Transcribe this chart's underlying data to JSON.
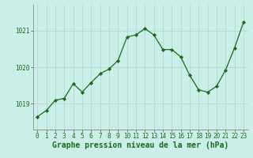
{
  "x": [
    0,
    1,
    2,
    3,
    4,
    5,
    6,
    7,
    8,
    9,
    10,
    11,
    12,
    13,
    14,
    15,
    16,
    17,
    18,
    19,
    20,
    21,
    22,
    23
  ],
  "y": [
    1018.65,
    1018.82,
    1019.1,
    1019.15,
    1019.55,
    1019.32,
    1019.58,
    1019.82,
    1019.95,
    1020.18,
    1020.82,
    1020.88,
    1021.05,
    1020.88,
    1020.48,
    1020.48,
    1020.28,
    1019.78,
    1019.38,
    1019.32,
    1019.48,
    1019.92,
    1020.52,
    1021.22
  ],
  "line_color": "#1a6b1a",
  "marker": "D",
  "marker_size": 2.2,
  "background_color": "#cceee8",
  "grid_color": "#aad4cc",
  "xlabel": "Graphe pression niveau de la mer (hPa)",
  "xlabel_fontsize": 7.0,
  "xlabel_color": "#1a6b1a",
  "yticks": [
    1019,
    1020,
    1021
  ],
  "ylim": [
    1018.3,
    1021.7
  ],
  "xlim": [
    -0.5,
    23.5
  ],
  "xticks": [
    0,
    1,
    2,
    3,
    4,
    5,
    6,
    7,
    8,
    9,
    10,
    11,
    12,
    13,
    14,
    15,
    16,
    17,
    18,
    19,
    20,
    21,
    22,
    23
  ],
  "tick_fontsize": 5.5,
  "tick_color": "#1a6b1a",
  "spine_color": "#888888",
  "linewidth": 0.9
}
